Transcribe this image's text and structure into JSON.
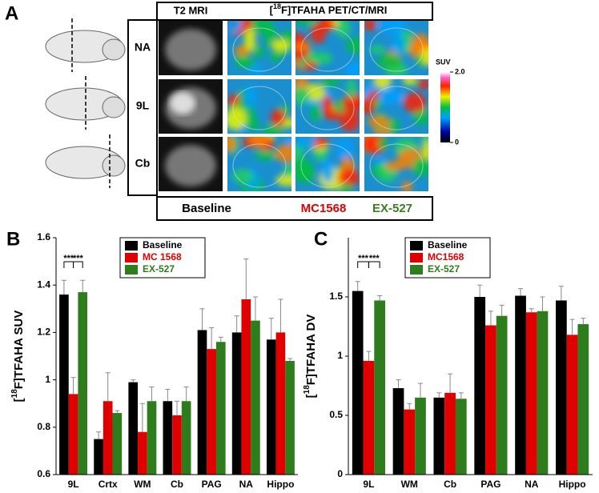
{
  "panel_a": {
    "panel_label": "A",
    "header_left": "T2 MRI",
    "header_right_parts": [
      "[",
      "18",
      "F]TFAHA PET/CT/MRI"
    ],
    "rows": [
      "NA",
      "9L",
      "Cb"
    ],
    "colorbar": {
      "label": "SUV",
      "ticks": [
        {
          "value": 2,
          "label": "2.0"
        },
        0
      ]
    },
    "conditions": [
      {
        "name": "Baseline",
        "color": "#000000"
      },
      {
        "name": "MC1568",
        "color": "#e00000"
      },
      {
        "name": "EX-527",
        "color": "#3a7d1e"
      }
    ]
  },
  "chart_data": [
    {
      "type": "bar",
      "panel_label": "B",
      "ylabel_parts": [
        "[",
        "18",
        "F]TFAHA SUV"
      ],
      "categories": [
        "9L",
        "Crtx",
        "WM",
        "Cb",
        "PAG",
        "NA",
        "Hippo"
      ],
      "series": [
        {
          "name": "Baseline",
          "color": "#000000",
          "values": [
            1.36,
            0.75,
            0.99,
            0.91,
            1.21,
            1.2,
            1.17
          ],
          "errors": [
            0.06,
            0.03,
            0.01,
            0.05,
            0.09,
            0.07,
            0.09
          ]
        },
        {
          "name": "MC 1568",
          "color": "#e00000",
          "values": [
            0.94,
            0.91,
            0.78,
            0.85,
            1.13,
            1.34,
            1.2
          ],
          "errors": [
            0.07,
            0.12,
            0.12,
            0.06,
            0.09,
            0.17,
            0.14
          ]
        },
        {
          "name": "EX-527",
          "color": "#2e7d1c",
          "values": [
            1.37,
            0.86,
            0.91,
            0.91,
            1.16,
            1.25,
            1.08
          ],
          "errors": [
            0.05,
            0.01,
            0.06,
            0.06,
            0.02,
            0.1,
            0.01
          ]
        }
      ],
      "ylim": [
        0.6,
        1.6
      ],
      "yticks": [
        0.6,
        0.8,
        1,
        1.2,
        1.4,
        1.6
      ],
      "significance": [
        "***",
        "***"
      ],
      "legend": "top-left"
    },
    {
      "type": "bar",
      "panel_label": "C",
      "ylabel_parts": [
        "[",
        "18",
        "F]TFAHA DV"
      ],
      "categories": [
        "9L",
        "WM",
        "Cb",
        "PAG",
        "NA",
        "Hippo"
      ],
      "series": [
        {
          "name": "Baseline",
          "color": "#000000",
          "values": [
            1.55,
            0.73,
            0.65,
            1.5,
            1.51,
            1.47
          ],
          "errors": [
            0.08,
            0.07,
            0.04,
            0.1,
            0.06,
            0.12
          ]
        },
        {
          "name": "MC1568",
          "color": "#e00000",
          "values": [
            0.96,
            0.55,
            0.69,
            1.26,
            1.37,
            1.18
          ],
          "errors": [
            0.08,
            0.05,
            0.16,
            0.12,
            0.03,
            0.13
          ]
        },
        {
          "name": "EX-527",
          "color": "#2e7d1c",
          "values": [
            1.47,
            0.65,
            0.64,
            1.34,
            1.38,
            1.27
          ],
          "errors": [
            0.04,
            0.12,
            0.05,
            0.09,
            0.12,
            0.05
          ]
        }
      ],
      "ylim": [
        0,
        2
      ],
      "yticks": [
        0,
        0.5,
        1,
        1.5
      ],
      "significance": [
        "***",
        "***"
      ],
      "legend": "top-left"
    }
  ]
}
